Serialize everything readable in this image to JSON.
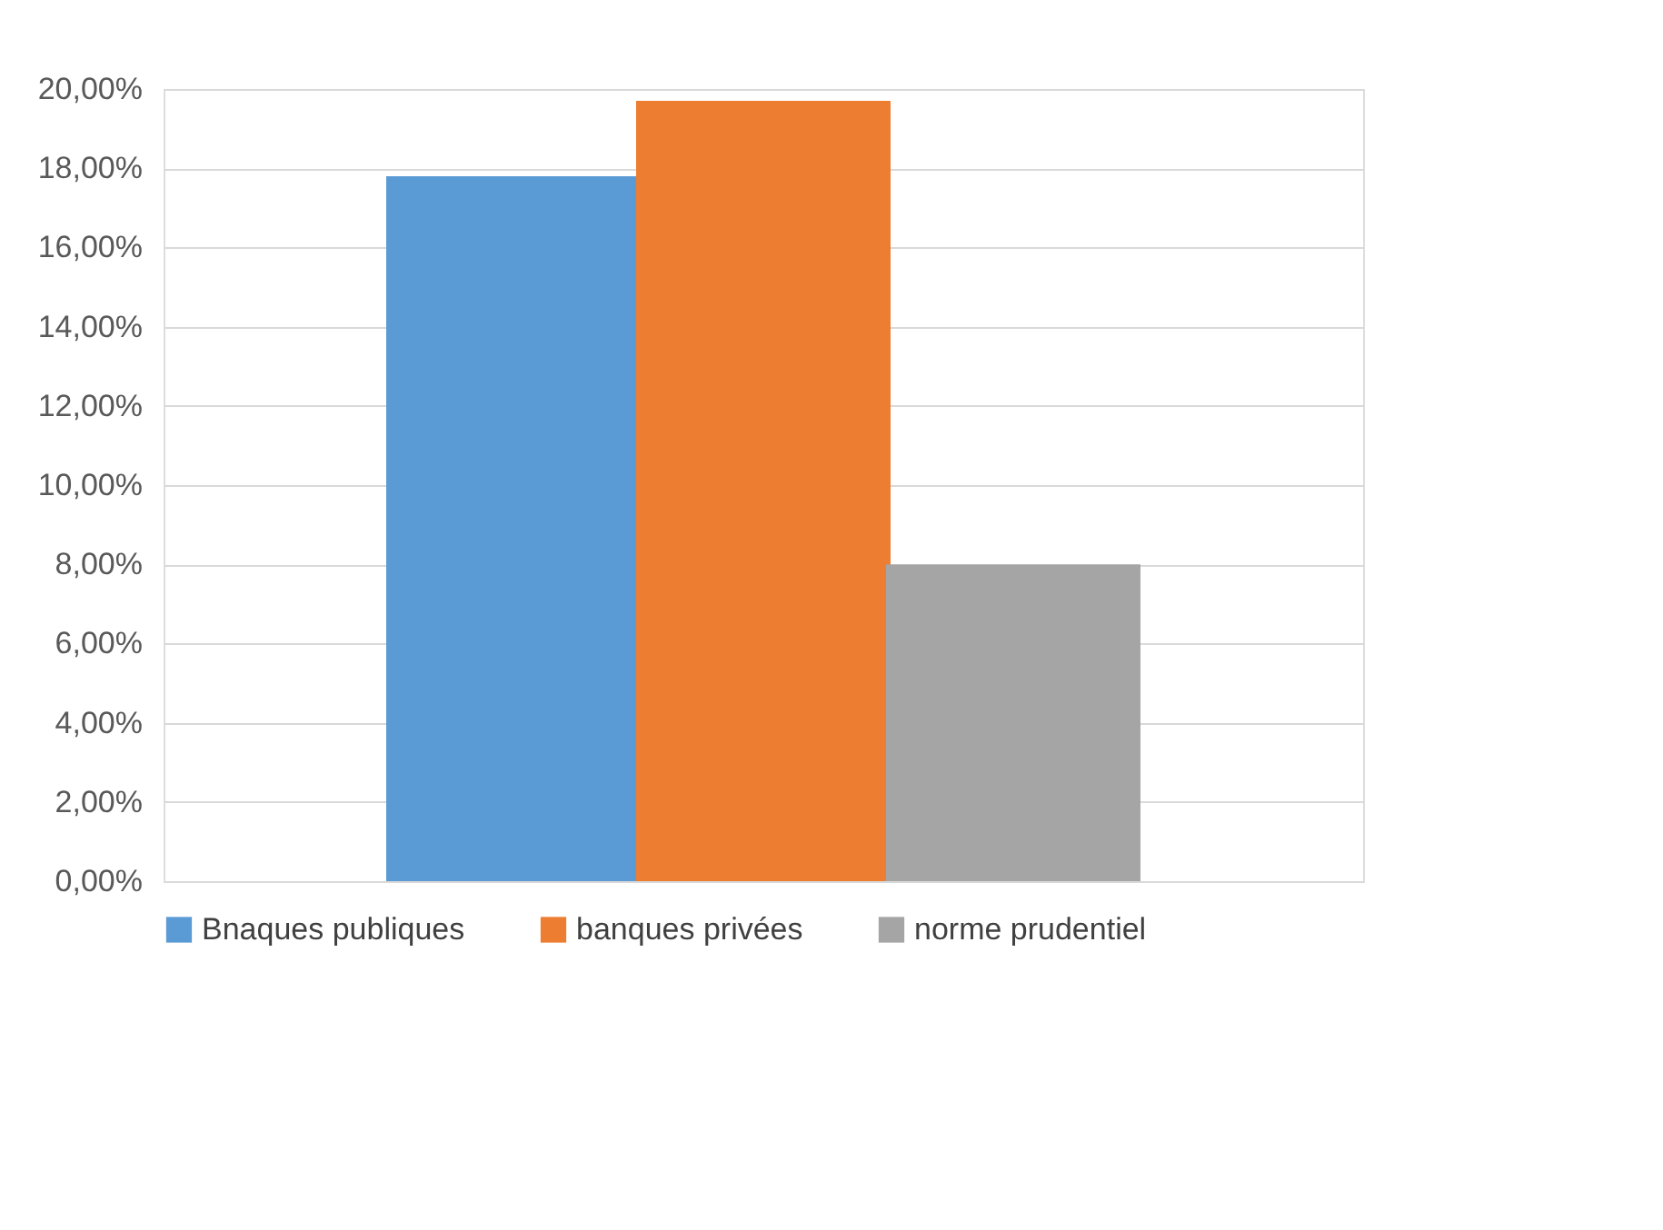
{
  "chart_data": {
    "type": "bar",
    "categories": [
      null
    ],
    "series": [
      {
        "name": "Bnaques publiques",
        "color": "#5b9bd5",
        "values": [
          17.8
        ]
      },
      {
        "name": "banques privées",
        "color": "#ed7d31",
        "values": [
          19.7
        ]
      },
      {
        "name": "norme prudentiel",
        "color": "#a5a5a5",
        "values": [
          8.0
        ]
      }
    ],
    "ylim": [
      0,
      20
    ],
    "yticks": [
      {
        "value": 0,
        "label": "0,00%"
      },
      {
        "value": 2,
        "label": "2,00%"
      },
      {
        "value": 4,
        "label": "4,00%"
      },
      {
        "value": 6,
        "label": "6,00%"
      },
      {
        "value": 8,
        "label": "8,00%"
      },
      {
        "value": 10,
        "label": "10,00%"
      },
      {
        "value": 12,
        "label": "12,00%"
      },
      {
        "value": 14,
        "label": "14,00%"
      },
      {
        "value": 16,
        "label": "16,00%"
      },
      {
        "value": 18,
        "label": "18,00%"
      },
      {
        "value": 20,
        "label": "20,00%"
      }
    ],
    "grid": "y",
    "legend": "bottom"
  }
}
